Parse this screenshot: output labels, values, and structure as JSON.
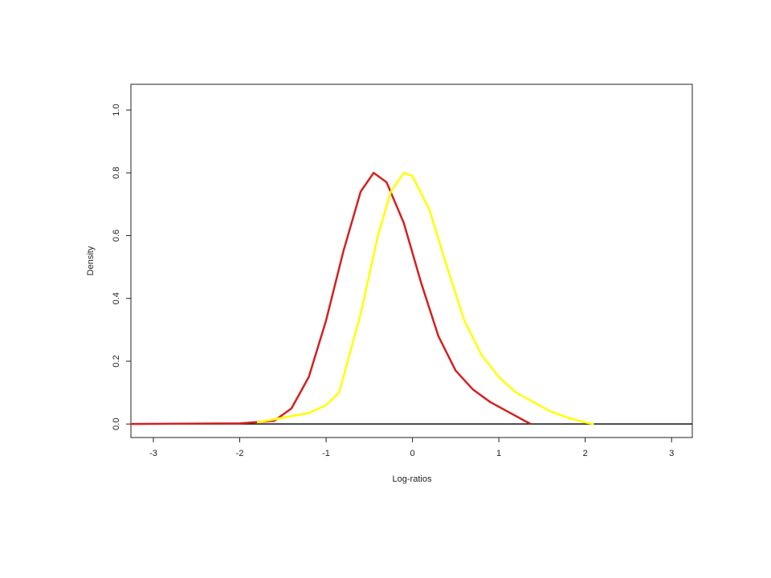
{
  "chart_data": {
    "type": "line",
    "x_label": "Log-ratios",
    "y_label": "Density",
    "xlim": [
      -3.26,
      3.24
    ],
    "ylim": [
      -0.043,
      1.082
    ],
    "xticks": [
      -3,
      -2,
      -1,
      0,
      1,
      2,
      3
    ],
    "yticks": [
      {
        "value": 0,
        "label": "0.0"
      },
      0.2,
      0.4,
      0.6,
      0.8,
      {
        "value": 1,
        "label": "1.0"
      }
    ],
    "hline": 0,
    "series": [
      {
        "color": "#d42020",
        "x": [
          -3.26,
          -2.0,
          -1.6,
          -1.4,
          -1.2,
          -1.0,
          -0.8,
          -0.6,
          -0.45,
          -0.3,
          -0.1,
          0.1,
          0.3,
          0.5,
          0.7,
          0.9,
          1.1,
          1.3,
          1.37
        ],
        "values": [
          0,
          0.002,
          0.01,
          0.05,
          0.15,
          0.33,
          0.55,
          0.74,
          0.8,
          0.77,
          0.64,
          0.45,
          0.28,
          0.17,
          0.11,
          0.07,
          0.04,
          0.01,
          0
        ]
      },
      {
        "color": "#ffff00",
        "x": [
          -1.8,
          -1.5,
          -1.2,
          -1.0,
          -0.85,
          -0.6,
          -0.4,
          -0.25,
          -0.1,
          0.0,
          0.2,
          0.4,
          0.6,
          0.8,
          1.0,
          1.2,
          1.4,
          1.6,
          1.8,
          2.0,
          2.1
        ],
        "values": [
          0.005,
          0.02,
          0.035,
          0.06,
          0.1,
          0.35,
          0.6,
          0.74,
          0.8,
          0.79,
          0.68,
          0.5,
          0.33,
          0.22,
          0.15,
          0.1,
          0.07,
          0.04,
          0.02,
          0.005,
          0
        ]
      }
    ]
  }
}
